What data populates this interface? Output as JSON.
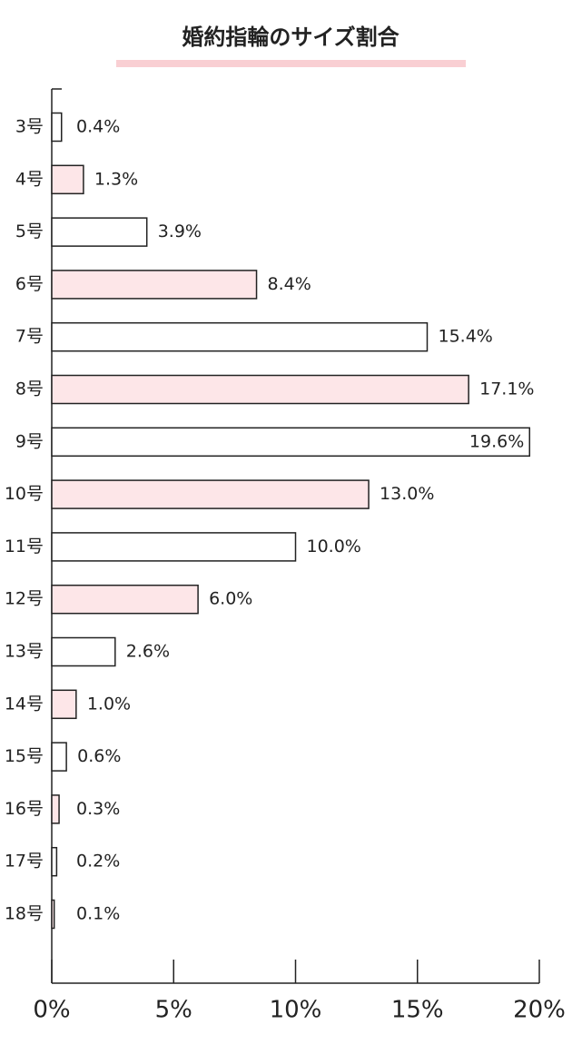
{
  "chart_data": {
    "type": "bar",
    "orientation": "horizontal",
    "title": "婚約指輪のサイズ割合",
    "categories": [
      "3号",
      "4号",
      "5号",
      "6号",
      "7号",
      "8号",
      "9号",
      "10号",
      "11号",
      "12号",
      "13号",
      "14号",
      "15号",
      "16号",
      "17号",
      "18号"
    ],
    "values": [
      0.4,
      1.3,
      3.9,
      8.4,
      15.4,
      17.1,
      19.6,
      13.0,
      10.0,
      6.0,
      2.6,
      1.0,
      0.6,
      0.3,
      0.2,
      0.1
    ],
    "value_labels": [
      "0.4%",
      "1.3%",
      "3.9%",
      "8.4%",
      "15.4%",
      "17.1%",
      "19.6%",
      "13.0%",
      "10.0%",
      "6.0%",
      "2.6%",
      "1.0%",
      "0.6%",
      "0.3%",
      "0.2%",
      "0.1%"
    ],
    "colors": [
      "#ffffff",
      "#fde6e8"
    ],
    "stroke": "#222222",
    "xlim": [
      0,
      20
    ],
    "xticks": [
      {
        "value": 0,
        "label": "0%"
      },
      {
        "value": 5,
        "label": "5%"
      },
      {
        "value": 10,
        "label": "10%"
      },
      {
        "value": 15,
        "label": "15%"
      },
      {
        "value": 20,
        "label": "20%"
      }
    ]
  }
}
